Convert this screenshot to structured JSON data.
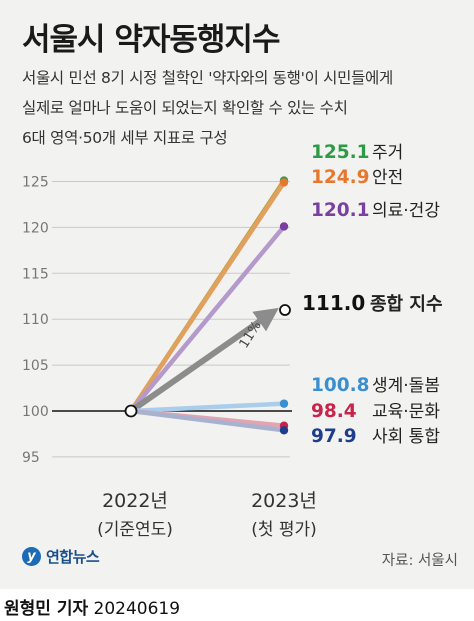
{
  "title": "서울시 약자동행지수",
  "subtitle_lines": [
    "서울시 민선 8기 시정 철학인 '약자와의 동행'이 시민들에게",
    "실제로 얼마나 도움이 되었는지 확인할 수 있는 수치",
    "6대 영역·50개 세부 지표로 구성"
  ],
  "chart_data": {
    "type": "line",
    "x": [
      "2022년",
      "2023년"
    ],
    "x_sublabels": [
      "(기준연도)",
      "(첫 평가)"
    ],
    "y_ticks": [
      95,
      100,
      105,
      110,
      115,
      120,
      125
    ],
    "ylim": [
      94,
      128
    ],
    "baseline": 100,
    "series": [
      {
        "name": "주거",
        "values": [
          100,
          125.1
        ],
        "label": "125.1",
        "color": "#2e9a45"
      },
      {
        "name": "안전",
        "values": [
          100,
          124.9
        ],
        "label": "124.9",
        "color": "#e8772e"
      },
      {
        "name": "의료·건강",
        "values": [
          100,
          120.1
        ],
        "label": "120.1",
        "color": "#7a3fa0"
      },
      {
        "name": "종합 지수",
        "values": [
          100,
          111.0
        ],
        "label": "111.0",
        "color": "#8c8c8c"
      },
      {
        "name": "생계·돌봄",
        "values": [
          100,
          100.8
        ],
        "label": "100.8",
        "color": "#3a8fd1"
      },
      {
        "name": "교육·문화",
        "values": [
          100,
          98.4
        ],
        "label": "98.4",
        "color": "#c8234a"
      },
      {
        "name": "사회 통합",
        "values": [
          100,
          97.9
        ],
        "label": "97.9",
        "color": "#1f3d8c"
      }
    ],
    "annotation": "11%"
  },
  "source": "자료: 서울시",
  "logo_text": "연합뉴스",
  "footer": {
    "reporter": "원형민 기자",
    "date": "20240619"
  }
}
